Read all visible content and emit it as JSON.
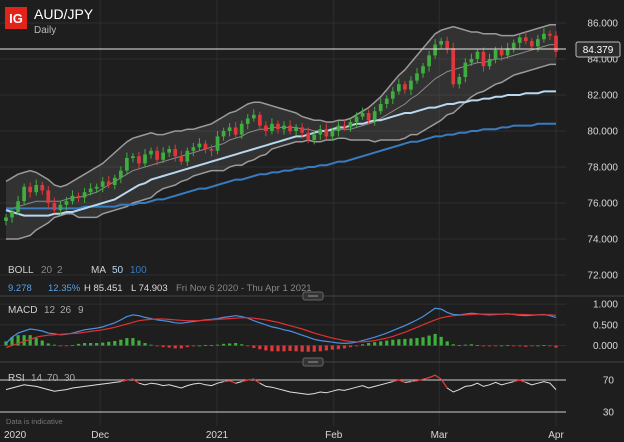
{
  "header": {
    "logo": "IG",
    "symbol": "AUD/JPY",
    "interval": "Daily"
  },
  "last_price": "84.379",
  "boll_legend": {
    "name": "BOLL",
    "period": "20",
    "stdev": "2",
    "ma_name": "MA",
    "ma_fast": "50",
    "ma_slow": "100"
  },
  "stats": {
    "value": "9.278",
    "pct": "12.35%",
    "high": "H 85.451",
    "low": "L 74.903",
    "range": "Fri Nov 6 2020 - Thu Apr 1 2021"
  },
  "macd_legend": {
    "name": "MACD",
    "fast": "12",
    "slow": "26",
    "signal": "9"
  },
  "rsi_legend": {
    "name": "RSI",
    "period": "14",
    "upper": "70",
    "lower": "30"
  },
  "disclaimer": "Data is indicative",
  "colors": {
    "up": "#3fae3f",
    "down": "#e0383a",
    "band": "#9a9a9a",
    "ma_fast": "#b8d8f0",
    "ma_slow": "#3a7bbf",
    "macd": "#4a90e2",
    "signal": "#e03030",
    "rsi": "#e0e0e0",
    "accent": "#e2231a"
  },
  "chart_data": [
    {
      "type": "candlestick",
      "ylim": [
        71,
        86.5
      ],
      "y_ticks": [
        "72.000",
        "74.000",
        "76.000",
        "78.000",
        "80.000",
        "82.000",
        "84.000",
        "86.000"
      ],
      "x_ticks": [
        "2020",
        "Dec",
        "2021",
        "Feb",
        "Mar",
        "Apr"
      ],
      "date_range": [
        "2020-11-06",
        "2021-04-01"
      ],
      "close": [
        75.2,
        75.5,
        76.1,
        76.9,
        76.6,
        77.0,
        76.7,
        76.0,
        75.6,
        75.9,
        76.1,
        76.4,
        76.3,
        76.6,
        76.8,
        76.9,
        77.2,
        77.0,
        77.4,
        77.8,
        78.5,
        78.6,
        78.2,
        78.7,
        78.9,
        78.4,
        78.8,
        79.0,
        78.6,
        78.3,
        78.9,
        79.1,
        79.3,
        79.0,
        78.9,
        79.7,
        80.0,
        80.2,
        79.8,
        80.4,
        80.7,
        80.9,
        80.3,
        80.0,
        80.4,
        80.1,
        80.3,
        80.0,
        80.2,
        79.9,
        79.5,
        79.8,
        80.1,
        79.7,
        80.0,
        80.3,
        80.2,
        80.5,
        80.8,
        81.0,
        80.6,
        81.1,
        81.5,
        81.8,
        82.2,
        82.6,
        82.3,
        82.8,
        83.2,
        83.6,
        84.2,
        84.8,
        85.0,
        84.6,
        82.6,
        83.0,
        83.8,
        84.0,
        84.4,
        83.6,
        84.0,
        84.5,
        84.2,
        84.6,
        84.9,
        85.2,
        85.0,
        84.7,
        85.1,
        85.4,
        85.3,
        84.4
      ],
      "bb_upper": [
        77.2,
        77.4,
        77.6,
        77.7,
        77.8,
        77.7,
        77.5,
        77.3,
        77.0,
        76.9,
        77.0,
        77.2,
        77.4,
        77.6,
        77.8,
        78.0,
        78.2,
        78.5,
        78.8,
        79.1,
        79.4,
        79.6,
        79.7,
        79.8,
        79.9,
        79.8,
        79.8,
        79.9,
        80.0,
        80.0,
        80.1,
        80.1,
        80.2,
        80.3,
        80.4,
        80.6,
        80.8,
        81.0,
        81.1,
        81.3,
        81.5,
        81.6,
        81.6,
        81.5,
        81.4,
        81.3,
        81.2,
        81.1,
        81.0,
        80.8,
        80.7,
        80.6,
        80.6,
        80.5,
        80.5,
        80.6,
        80.6,
        80.7,
        80.9,
        81.1,
        81.3,
        81.6,
        81.9,
        82.3,
        82.7,
        83.1,
        83.4,
        83.8,
        84.2,
        84.6,
        85.0,
        85.4,
        85.6,
        85.7,
        85.8,
        85.7,
        85.6,
        85.5,
        85.5,
        85.4,
        85.4,
        85.4,
        85.3,
        85.3,
        85.3,
        85.4,
        85.5,
        85.6,
        85.7,
        85.8,
        85.9,
        85.9
      ],
      "bb_middle": [
        75.6,
        75.7,
        75.8,
        75.9,
        76.0,
        76.1,
        76.1,
        76.1,
        76.1,
        76.1,
        76.2,
        76.3,
        76.3,
        76.4,
        76.5,
        76.6,
        76.8,
        77.0,
        77.2,
        77.4,
        77.6,
        77.8,
        77.9,
        78.0,
        78.1,
        78.2,
        78.3,
        78.4,
        78.5,
        78.6,
        78.7,
        78.8,
        78.9,
        79.0,
        79.1,
        79.2,
        79.3,
        79.5,
        79.6,
        79.7,
        79.9,
        80.0,
        80.1,
        80.1,
        80.2,
        80.2,
        80.2,
        80.2,
        80.2,
        80.1,
        80.1,
        80.0,
        80.0,
        80.0,
        80.0,
        80.1,
        80.1,
        80.1,
        80.2,
        80.3,
        80.4,
        80.5,
        80.7,
        80.9,
        81.1,
        81.3,
        81.5,
        81.8,
        82.0,
        82.3,
        82.6,
        82.9,
        83.1,
        83.3,
        83.4,
        83.5,
        83.6,
        83.7,
        83.8,
        83.8,
        83.9,
        84.0,
        84.0,
        84.1,
        84.2,
        84.3,
        84.4,
        84.5,
        84.6,
        84.7,
        84.8,
        84.8
      ],
      "bb_lower": [
        74.0,
        74.0,
        74.0,
        74.1,
        74.2,
        74.5,
        74.7,
        74.9,
        75.2,
        75.3,
        75.4,
        75.4,
        75.2,
        75.2,
        75.2,
        75.2,
        75.4,
        75.5,
        75.6,
        75.7,
        75.8,
        76.0,
        76.1,
        76.2,
        76.3,
        76.6,
        76.8,
        76.9,
        77.0,
        77.2,
        77.3,
        77.5,
        77.6,
        77.7,
        77.8,
        77.8,
        77.8,
        78.0,
        78.1,
        78.1,
        78.3,
        78.4,
        78.6,
        78.7,
        79.0,
        79.1,
        79.2,
        79.3,
        79.4,
        79.4,
        79.5,
        79.4,
        79.4,
        79.5,
        79.5,
        79.6,
        79.6,
        79.5,
        79.5,
        79.5,
        79.5,
        79.4,
        79.5,
        79.5,
        79.5,
        79.5,
        79.6,
        79.8,
        79.8,
        80.0,
        80.2,
        80.4,
        80.6,
        80.9,
        81.0,
        81.3,
        81.6,
        81.9,
        82.1,
        82.2,
        82.4,
        82.6,
        82.7,
        82.9,
        83.1,
        83.2,
        83.3,
        83.4,
        83.5,
        83.6,
        83.7,
        83.7
      ],
      "ma_50": [
        75.6,
        75.5,
        75.4,
        75.3,
        75.3,
        75.3,
        75.3,
        75.3,
        75.4,
        75.4,
        75.5,
        75.5,
        75.6,
        75.7,
        75.8,
        75.9,
        76.0,
        76.1,
        76.2,
        76.4,
        76.6,
        76.8,
        77.0,
        77.1,
        77.3,
        77.4,
        77.5,
        77.6,
        77.7,
        77.8,
        77.9,
        78.0,
        78.1,
        78.2,
        78.3,
        78.4,
        78.5,
        78.6,
        78.7,
        78.8,
        78.9,
        79.0,
        79.1,
        79.2,
        79.3,
        79.4,
        79.5,
        79.6,
        79.7,
        79.7,
        79.8,
        79.9,
        80.0,
        80.0,
        80.1,
        80.2,
        80.2,
        80.3,
        80.4,
        80.4,
        80.5,
        80.6,
        80.6,
        80.7,
        80.8,
        80.9,
        81.0,
        81.0,
        81.1,
        81.2,
        81.3,
        81.3,
        81.4,
        81.5,
        81.5,
        81.6,
        81.6,
        81.7,
        81.7,
        81.8,
        81.8,
        81.9,
        81.9,
        82.0,
        82.0,
        82.0,
        82.1,
        82.1,
        82.1,
        82.2,
        82.2,
        82.2
      ],
      "ma_100": [
        75.7,
        75.7,
        75.7,
        75.7,
        75.7,
        75.7,
        75.7,
        75.7,
        75.7,
        75.7,
        75.7,
        75.7,
        75.7,
        75.8,
        75.8,
        75.8,
        75.8,
        75.8,
        75.8,
        75.9,
        75.9,
        75.9,
        76.0,
        76.0,
        76.1,
        76.2,
        76.2,
        76.3,
        76.4,
        76.5,
        76.6,
        76.7,
        76.8,
        76.8,
        76.9,
        77.0,
        77.1,
        77.2,
        77.3,
        77.3,
        77.4,
        77.5,
        77.6,
        77.6,
        77.7,
        77.7,
        77.8,
        77.8,
        77.9,
        77.9,
        78.0,
        78.0,
        78.1,
        78.1,
        78.2,
        78.3,
        78.3,
        78.4,
        78.5,
        78.6,
        78.7,
        78.8,
        78.9,
        79.0,
        79.1,
        79.2,
        79.3,
        79.4,
        79.4,
        79.5,
        79.6,
        79.7,
        79.7,
        79.8,
        79.8,
        79.9,
        79.9,
        80.0,
        80.0,
        80.1,
        80.1,
        80.1,
        80.2,
        80.2,
        80.3,
        80.3,
        80.3,
        80.3,
        80.4,
        80.4,
        80.4,
        80.4
      ]
    },
    {
      "type": "macd",
      "ylim": [
        -0.35,
        1.1
      ],
      "y_ticks": [
        "0.000",
        "0.500",
        "1.000"
      ],
      "macd": [
        0.05,
        0.2,
        0.3,
        0.35,
        0.4,
        0.38,
        0.35,
        0.3,
        0.28,
        0.26,
        0.27,
        0.3,
        0.34,
        0.38,
        0.4,
        0.42,
        0.45,
        0.5,
        0.55,
        0.62,
        0.7,
        0.74,
        0.72,
        0.68,
        0.65,
        0.62,
        0.6,
        0.58,
        0.55,
        0.54,
        0.56,
        0.58,
        0.6,
        0.62,
        0.63,
        0.65,
        0.68,
        0.7,
        0.72,
        0.7,
        0.66,
        0.6,
        0.55,
        0.5,
        0.45,
        0.42,
        0.38,
        0.35,
        0.3,
        0.25,
        0.2,
        0.15,
        0.12,
        0.1,
        0.08,
        0.06,
        0.05,
        0.06,
        0.08,
        0.12,
        0.16,
        0.2,
        0.25,
        0.3,
        0.36,
        0.42,
        0.48,
        0.55,
        0.62,
        0.7,
        0.8,
        0.9,
        0.88,
        0.8,
        0.75,
        0.74,
        0.76,
        0.78,
        0.77,
        0.75,
        0.74,
        0.75,
        0.76,
        0.77,
        0.75,
        0.73,
        0.72,
        0.73,
        0.74,
        0.75,
        0.72,
        0.68
      ],
      "signal": [
        -0.05,
        0.0,
        0.05,
        0.1,
        0.15,
        0.2,
        0.23,
        0.25,
        0.26,
        0.27,
        0.28,
        0.29,
        0.3,
        0.32,
        0.34,
        0.36,
        0.38,
        0.41,
        0.44,
        0.48,
        0.52,
        0.56,
        0.6,
        0.62,
        0.63,
        0.64,
        0.64,
        0.63,
        0.62,
        0.61,
        0.6,
        0.6,
        0.6,
        0.61,
        0.62,
        0.63,
        0.64,
        0.65,
        0.66,
        0.67,
        0.67,
        0.66,
        0.64,
        0.62,
        0.59,
        0.56,
        0.52,
        0.48,
        0.44,
        0.4,
        0.35,
        0.3,
        0.26,
        0.22,
        0.18,
        0.15,
        0.12,
        0.1,
        0.09,
        0.09,
        0.1,
        0.12,
        0.15,
        0.18,
        0.22,
        0.27,
        0.32,
        0.38,
        0.44,
        0.5,
        0.56,
        0.62,
        0.67,
        0.7,
        0.72,
        0.73,
        0.74,
        0.75,
        0.76,
        0.76,
        0.76,
        0.76,
        0.76,
        0.76,
        0.76,
        0.75,
        0.75,
        0.74,
        0.74,
        0.74,
        0.74,
        0.73
      ]
    },
    {
      "type": "line",
      "name": "rsi",
      "ylim": [
        15,
        85
      ],
      "y_ticks": [
        "30",
        "70"
      ],
      "values": [
        58,
        60,
        62,
        64,
        63,
        62,
        60,
        58,
        56,
        57,
        58,
        60,
        61,
        62,
        63,
        64,
        65,
        66,
        67,
        68,
        70,
        71,
        66,
        64,
        66,
        65,
        63,
        64,
        62,
        60,
        63,
        65,
        66,
        64,
        63,
        66,
        68,
        69,
        66,
        68,
        70,
        71,
        66,
        62,
        61,
        59,
        57,
        55,
        54,
        53,
        52,
        53,
        55,
        54,
        56,
        58,
        57,
        59,
        61,
        63,
        60,
        62,
        64,
        66,
        68,
        70,
        67,
        68,
        69,
        71,
        73,
        76,
        71,
        60,
        55,
        58,
        62,
        63,
        66,
        62,
        64,
        67,
        64,
        66,
        68,
        70,
        67,
        64,
        66,
        68,
        66,
        58
      ]
    }
  ]
}
